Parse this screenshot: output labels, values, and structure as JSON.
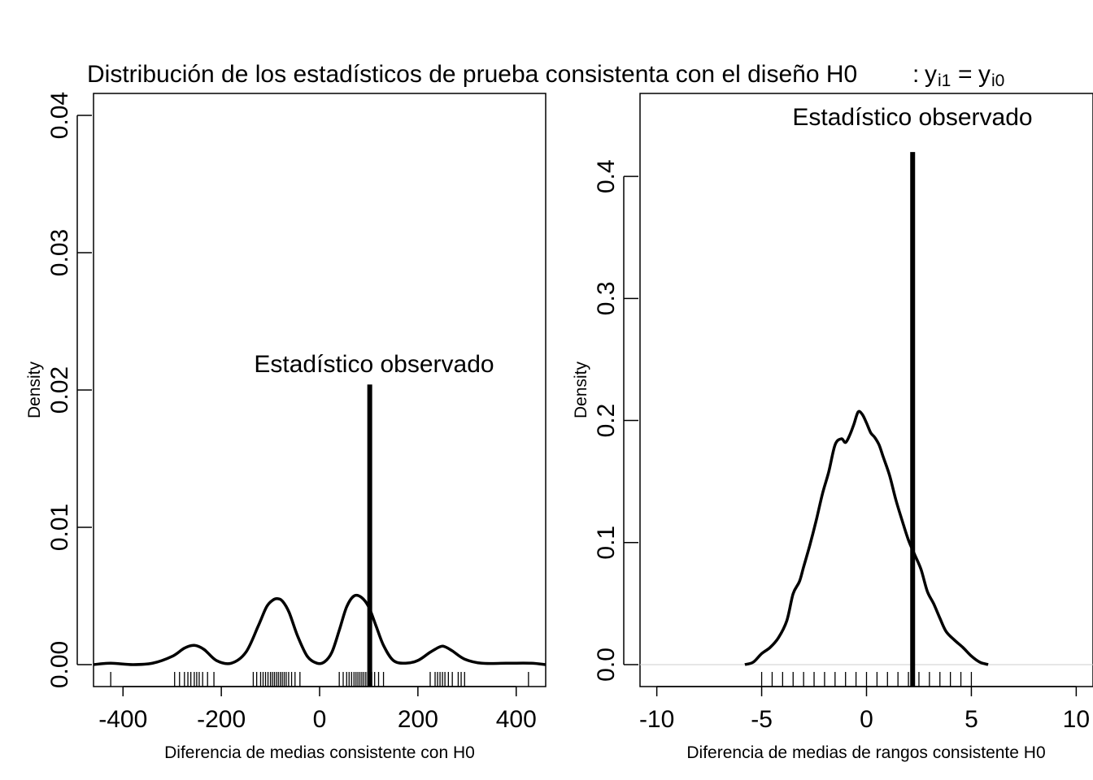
{
  "title": {
    "text": "Distribución de los estadísticos de prueba consistenta con el diseño H0",
    "formula_colon": ":",
    "y1": "y",
    "y1_sub": "i1",
    "equals": "=",
    "y0": "y",
    "y0_sub": "i0"
  },
  "chart_data": [
    {
      "type": "line",
      "title": "",
      "xlabel": "Diferencia de medias consistente con H0",
      "ylabel": "Density",
      "xlim": [
        -460,
        460
      ],
      "ylim": [
        -0.0016,
        0.0416
      ],
      "xticks": [
        -400,
        -200,
        0,
        200,
        400
      ],
      "xtick_labels": [
        "-400",
        "-200",
        "0",
        "200",
        "400"
      ],
      "yticks": [
        0.0,
        0.01,
        0.02,
        0.03,
        0.04
      ],
      "ytick_labels": [
        "0.00",
        "0.01",
        "0.02",
        "0.03",
        "0.04"
      ],
      "series": [
        {
          "x": [
            -460,
            -425,
            -380,
            -340,
            -300,
            -275,
            -255,
            -235,
            -210,
            -180,
            -150,
            -125,
            -108,
            -95,
            -85,
            -75,
            -62,
            -45,
            -25,
            -5,
            10,
            25,
            40,
            55,
            70,
            85,
            100,
            115,
            130,
            150,
            175,
            200,
            225,
            245,
            255,
            270,
            295,
            330,
            380,
            430,
            460
          ],
          "y": [
            0.0,
            0.0001,
            0.0,
            0.0001,
            0.0006,
            0.0012,
            0.0014,
            0.0011,
            0.0003,
            0.0001,
            0.0009,
            0.0028,
            0.0042,
            0.0047,
            0.0048,
            0.0046,
            0.0038,
            0.0021,
            0.0006,
            0.0001,
            0.0002,
            0.0009,
            0.0025,
            0.0042,
            0.005,
            0.0049,
            0.0042,
            0.0028,
            0.0014,
            0.0003,
            0.0001,
            0.0003,
            0.0009,
            0.0013,
            0.0013,
            0.001,
            0.0004,
            0.0001,
            0.0001,
            0.0001,
            0.0
          ]
        }
      ],
      "rug": [
        -425,
        -295,
        -285,
        -275,
        -268,
        -262,
        -255,
        -250,
        -245,
        -238,
        -228,
        -215,
        -135,
        -128,
        -120,
        -115,
        -110,
        -105,
        -100,
        -96,
        -92,
        -88,
        -84,
        -80,
        -76,
        -72,
        -68,
        -63,
        -57,
        -50,
        -40,
        40,
        48,
        55,
        60,
        65,
        70,
        74,
        78,
        82,
        86,
        90,
        94,
        98,
        102,
        106,
        112,
        120,
        130,
        225,
        235,
        240,
        245,
        250,
        255,
        262,
        270,
        282,
        288,
        295,
        425
      ],
      "observed_x": 102,
      "observed_top": 0.0204,
      "observed_label": "Estadístico observado"
    },
    {
      "type": "line",
      "title": "",
      "xlabel": "Diferencia de medias de rangos consistente  H0",
      "ylabel": "Density",
      "xlim": [
        -10.8,
        10.8
      ],
      "ylim": [
        -0.018,
        0.468
      ],
      "xticks": [
        -10,
        -5,
        0,
        5,
        10
      ],
      "xtick_labels": [
        "-10",
        "-5",
        "0",
        "5",
        "10"
      ],
      "yticks": [
        0.0,
        0.1,
        0.2,
        0.3,
        0.4
      ],
      "ytick_labels": [
        "0.0",
        "0.1",
        "0.2",
        "0.3",
        "0.4"
      ],
      "series": [
        {
          "x": [
            -5.8,
            -5.4,
            -5.0,
            -4.6,
            -4.2,
            -3.8,
            -3.5,
            -3.2,
            -3.0,
            -2.7,
            -2.4,
            -2.1,
            -1.8,
            -1.5,
            -1.2,
            -1.0,
            -0.8,
            -0.6,
            -0.4,
            -0.2,
            0.0,
            0.2,
            0.4,
            0.6,
            0.8,
            1.1,
            1.4,
            1.7,
            2.0,
            2.3,
            2.6,
            2.9,
            3.2,
            3.5,
            3.8,
            4.2,
            4.6,
            5.0,
            5.4,
            5.8
          ],
          "y": [
            0.0,
            0.002,
            0.009,
            0.014,
            0.022,
            0.036,
            0.058,
            0.068,
            0.08,
            0.098,
            0.118,
            0.14,
            0.158,
            0.18,
            0.185,
            0.182,
            0.188,
            0.197,
            0.207,
            0.205,
            0.198,
            0.19,
            0.186,
            0.18,
            0.17,
            0.155,
            0.135,
            0.118,
            0.102,
            0.09,
            0.078,
            0.06,
            0.05,
            0.038,
            0.027,
            0.02,
            0.014,
            0.007,
            0.002,
            0.0
          ]
        }
      ],
      "rug": [
        -5,
        -4.5,
        -4,
        -3.5,
        -3,
        -2.5,
        -2,
        -1.5,
        -1,
        -0.5,
        0,
        0.5,
        1,
        1.5,
        2,
        2.5,
        3,
        3.5,
        4,
        4.5,
        5
      ],
      "observed_x": 2.2,
      "observed_top": 0.42,
      "observed_label": "Estadístico observado"
    }
  ]
}
